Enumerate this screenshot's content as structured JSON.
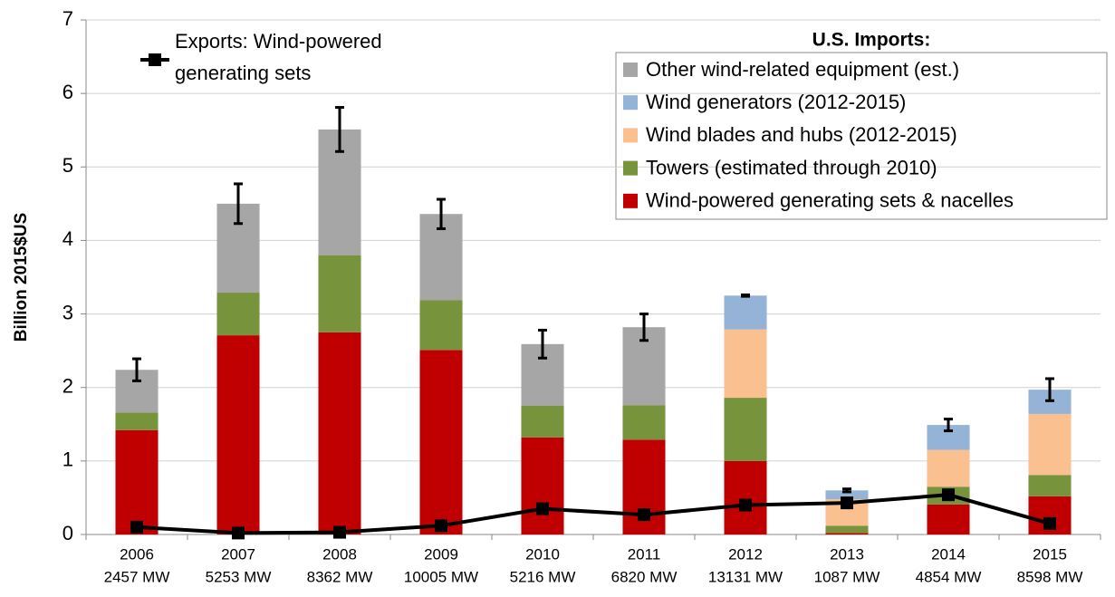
{
  "chart_data": {
    "type": "bar",
    "y_label": "Billion 2015$US",
    "legend_title": "U.S. Imports:",
    "categories": [
      "2006",
      "2007",
      "2008",
      "2009",
      "2010",
      "2011",
      "2012",
      "2013",
      "2014",
      "2015"
    ],
    "category_sublabels": [
      "2457 MW",
      "5253 MW",
      "8362 MW",
      "10005 MW",
      "5216 MW",
      "6820 MW",
      "13131 MW",
      "1087 MW",
      "4854 MW",
      "8598 MW"
    ],
    "series": [
      {
        "name": "Wind-powered generating sets & nacelles",
        "color": "#c00000",
        "values": [
          1.42,
          2.71,
          2.75,
          2.51,
          1.32,
          1.29,
          1.0,
          0.02,
          0.41,
          0.52
        ]
      },
      {
        "name": "Towers (estimated through 2010)",
        "color": "#77933c",
        "values": [
          0.24,
          0.58,
          1.05,
          0.68,
          0.43,
          0.47,
          0.86,
          0.1,
          0.24,
          0.29
        ]
      },
      {
        "name": "Wind blades and hubs (2012-2015)",
        "color": "#fac090",
        "values": [
          0,
          0,
          0,
          0,
          0,
          0,
          0.93,
          0.36,
          0.5,
          0.83
        ]
      },
      {
        "name": "Wind generators (2012-2015)",
        "color": "#95b3d7",
        "values": [
          0,
          0,
          0,
          0,
          0,
          0,
          0.46,
          0.12,
          0.34,
          0.33
        ]
      },
      {
        "name": "Other wind-related equipment (est.)",
        "color": "#a6a6a6",
        "values": [
          0.58,
          1.21,
          1.71,
          1.17,
          0.84,
          1.06,
          0,
          0,
          0,
          0
        ]
      },
      {
        "name": "Exports: Wind-powered generating sets",
        "type": "line",
        "color": "#000000",
        "values": [
          0.1,
          0.02,
          0.03,
          0.12,
          0.35,
          0.27,
          0.4,
          0.43,
          0.54,
          0.15
        ]
      }
    ],
    "errors": [
      0.15,
      0.27,
      0.3,
      0.2,
      0.19,
      0.18,
      0.01,
      0.02,
      0.08,
      0.15
    ],
    "ylim": [
      0,
      7
    ],
    "yticks": [
      0,
      1,
      2,
      3,
      4,
      5,
      6,
      7
    ],
    "grid": true
  }
}
